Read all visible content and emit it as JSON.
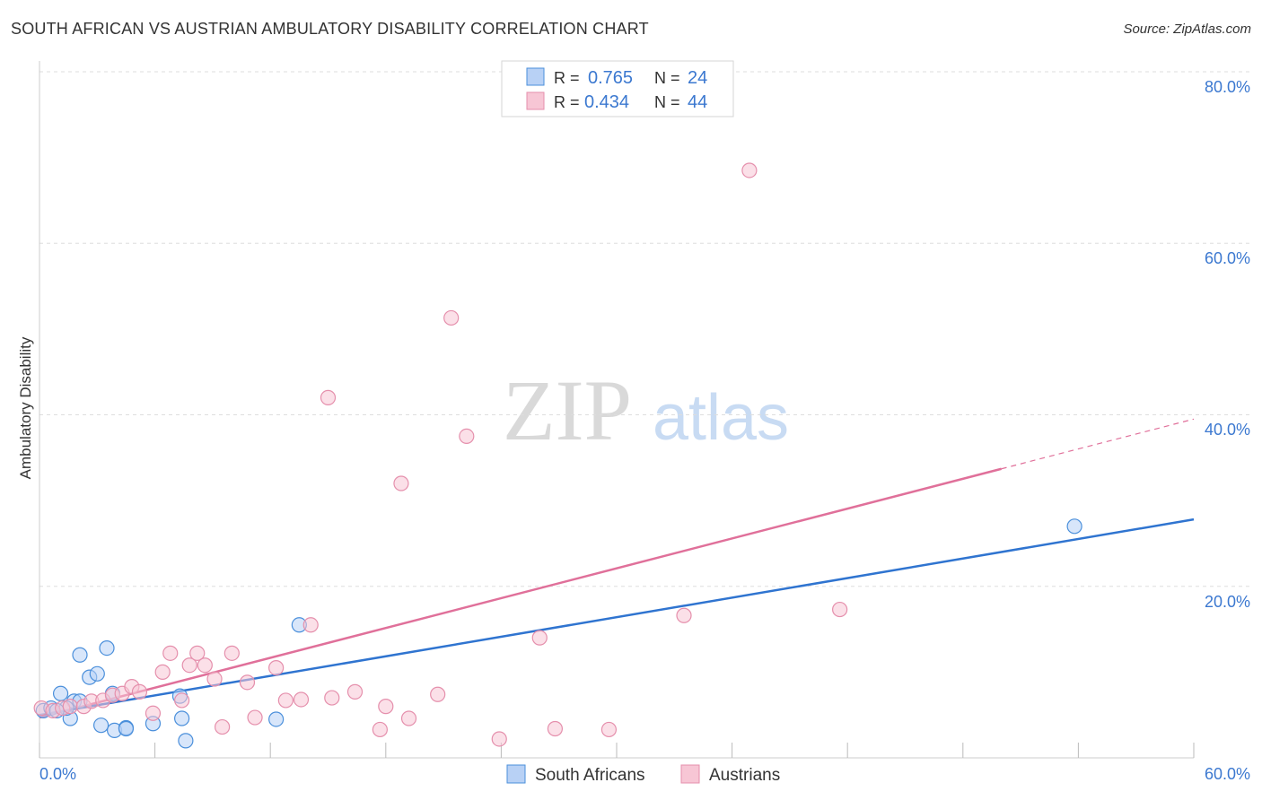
{
  "header": {
    "title": "SOUTH AFRICAN VS AUSTRIAN AMBULATORY DISABILITY CORRELATION CHART",
    "source": "Source: ZipAtlas.com"
  },
  "watermark": {
    "zip": "ZIP",
    "atlas": "atlas"
  },
  "colors": {
    "blue": "#4a8fdb",
    "blue_fill": "#b8d1f5",
    "blue_line": "#2f74d0",
    "pink": "#e58fac",
    "pink_fill": "#f7c6d5",
    "pink_line": "#e0709a",
    "axis_label": "#3b78d0",
    "grid": "#dddddd"
  },
  "legend": {
    "rows": [
      {
        "r_label": "R = ",
        "r_value": "0.765",
        "n_label": "N = ",
        "n_value": "24"
      },
      {
        "r_label": "R = ",
        "r_value": "0.434",
        "n_label": "N = ",
        "n_value": "44"
      }
    ]
  },
  "bottom_legend": {
    "items": [
      "South Africans",
      "Austrians"
    ]
  },
  "chart_data": {
    "type": "scatter",
    "title": "SOUTH AFRICAN VS AUSTRIAN AMBULATORY DISABILITY CORRELATION CHART",
    "xlabel": "",
    "ylabel": "Ambulatory Disability",
    "xlim": [
      0,
      60
    ],
    "ylim": [
      0,
      80
    ],
    "x_tick_labels": [
      "0.0%",
      "60.0%"
    ],
    "y_tick_labels": [
      "20.0%",
      "40.0%",
      "60.0%",
      "80.0%"
    ],
    "y_ticks": [
      20,
      40,
      60,
      80
    ],
    "grid": true,
    "series": [
      {
        "name": "South Africans",
        "color": "blue",
        "points": [
          [
            0.2,
            5.5
          ],
          [
            0.6,
            5.8
          ],
          [
            1.1,
            7.5
          ],
          [
            1.6,
            4.6
          ],
          [
            1.8,
            6.6
          ],
          [
            2.1,
            12.0
          ],
          [
            2.6,
            9.4
          ],
          [
            3.0,
            9.8
          ],
          [
            3.2,
            3.8
          ],
          [
            3.5,
            12.8
          ],
          [
            3.8,
            7.5
          ],
          [
            3.9,
            3.2
          ],
          [
            4.5,
            3.5
          ],
          [
            4.5,
            3.4
          ],
          [
            5.9,
            4.0
          ],
          [
            7.3,
            7.2
          ],
          [
            7.6,
            2.0
          ],
          [
            7.4,
            4.6
          ],
          [
            12.3,
            4.5
          ],
          [
            13.5,
            15.5
          ],
          [
            53.8,
            27.0
          ],
          [
            2.1,
            6.6
          ],
          [
            1.4,
            5.8
          ],
          [
            0.9,
            5.5
          ]
        ],
        "trend": {
          "x": [
            0,
            60
          ],
          "y": [
            5.0,
            27.8
          ],
          "style": "solid"
        }
      },
      {
        "name": "Austrians",
        "color": "pink",
        "points": [
          [
            0.1,
            5.8
          ],
          [
            0.7,
            5.5
          ],
          [
            1.2,
            5.8
          ],
          [
            1.6,
            6.0
          ],
          [
            2.3,
            6.0
          ],
          [
            2.7,
            6.6
          ],
          [
            3.3,
            6.7
          ],
          [
            3.8,
            7.3
          ],
          [
            4.3,
            7.5
          ],
          [
            4.8,
            8.3
          ],
          [
            5.2,
            7.7
          ],
          [
            5.9,
            5.2
          ],
          [
            6.4,
            10.0
          ],
          [
            6.8,
            12.2
          ],
          [
            7.4,
            6.7
          ],
          [
            7.8,
            10.8
          ],
          [
            8.2,
            12.2
          ],
          [
            8.6,
            10.8
          ],
          [
            9.1,
            9.2
          ],
          [
            9.5,
            3.6
          ],
          [
            10.0,
            12.2
          ],
          [
            10.8,
            8.8
          ],
          [
            11.2,
            4.7
          ],
          [
            12.3,
            10.5
          ],
          [
            12.8,
            6.7
          ],
          [
            13.6,
            6.8
          ],
          [
            14.1,
            15.5
          ],
          [
            15.0,
            42.0
          ],
          [
            15.2,
            7.0
          ],
          [
            16.4,
            7.7
          ],
          [
            17.7,
            3.3
          ],
          [
            18.0,
            6.0
          ],
          [
            18.8,
            32.0
          ],
          [
            19.2,
            4.6
          ],
          [
            20.7,
            7.4
          ],
          [
            21.4,
            51.3
          ],
          [
            22.2,
            37.5
          ],
          [
            23.9,
            2.2
          ],
          [
            26.0,
            14.0
          ],
          [
            26.8,
            3.4
          ],
          [
            29.6,
            3.3
          ],
          [
            33.5,
            16.6
          ],
          [
            36.9,
            68.5
          ],
          [
            41.6,
            17.3
          ]
        ],
        "trend": {
          "x": [
            0,
            50
          ],
          "y": [
            4.7,
            33.7
          ],
          "x_dashed": [
            50,
            60
          ],
          "y_dashed": [
            33.7,
            39.5
          ],
          "style": "solid+dashed"
        }
      }
    ]
  }
}
